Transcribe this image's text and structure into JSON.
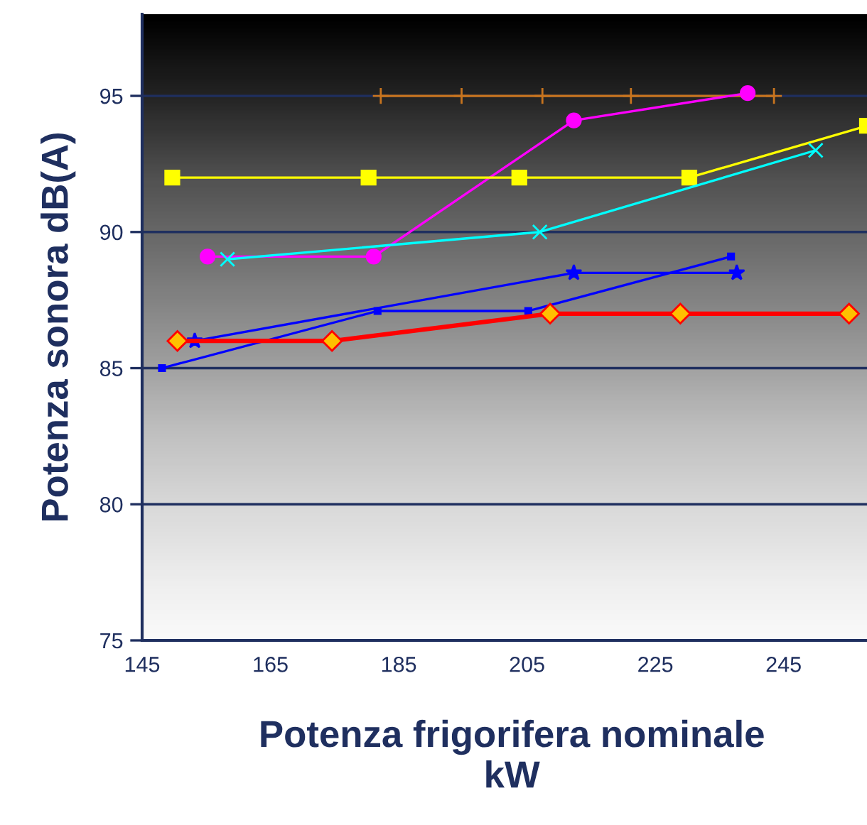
{
  "chart_data": {
    "type": "line",
    "xlabel": "Potenza frigorifera nominale\nkW",
    "ylabel": "Potenza sonora dB(A)",
    "xlim": [
      145,
      258
    ],
    "ylim": [
      75,
      98
    ],
    "xticks": [
      145,
      165,
      185,
      205,
      225,
      245
    ],
    "yticks": [
      75,
      80,
      85,
      90,
      95
    ],
    "grid": "y",
    "legend": false,
    "series": [
      {
        "color": "#c8741e",
        "marker": "cross",
        "x": [
          182.2,
          194.8,
          207.4,
          221.2,
          243.5
        ],
        "values": [
          95,
          95,
          95,
          95,
          95
        ]
      },
      {
        "color": "#ff00ff",
        "marker": "circle",
        "x": [
          155.2,
          181.1,
          212.3,
          239.4
        ],
        "values": [
          89.1,
          89.1,
          94.1,
          95.1
        ]
      },
      {
        "color": "#ffff00",
        "marker": "square",
        "x": [
          149.7,
          180.3,
          203.8,
          230.3,
          258
        ],
        "values": [
          92,
          92,
          92,
          92,
          93.9
        ]
      },
      {
        "color": "#00ffff",
        "marker": "x",
        "x": [
          158.3,
          207,
          250
        ],
        "values": [
          89,
          90,
          93
        ]
      },
      {
        "color": "#0000ff",
        "marker": "star",
        "x": [
          153.2,
          212.3,
          237.7
        ],
        "values": [
          86,
          88.5,
          88.5
        ]
      },
      {
        "color": "#0000ff",
        "marker": "square",
        "x": [
          148.1,
          181.7,
          205.2,
          236.8
        ],
        "values": [
          85,
          87.1,
          87.1,
          89.1
        ]
      },
      {
        "color": "#ff0000",
        "marker": "diamond",
        "x": [
          150.5,
          174.6,
          208.6,
          228.9,
          255.2
        ],
        "values": [
          86,
          86,
          87,
          87,
          87
        ]
      }
    ]
  }
}
